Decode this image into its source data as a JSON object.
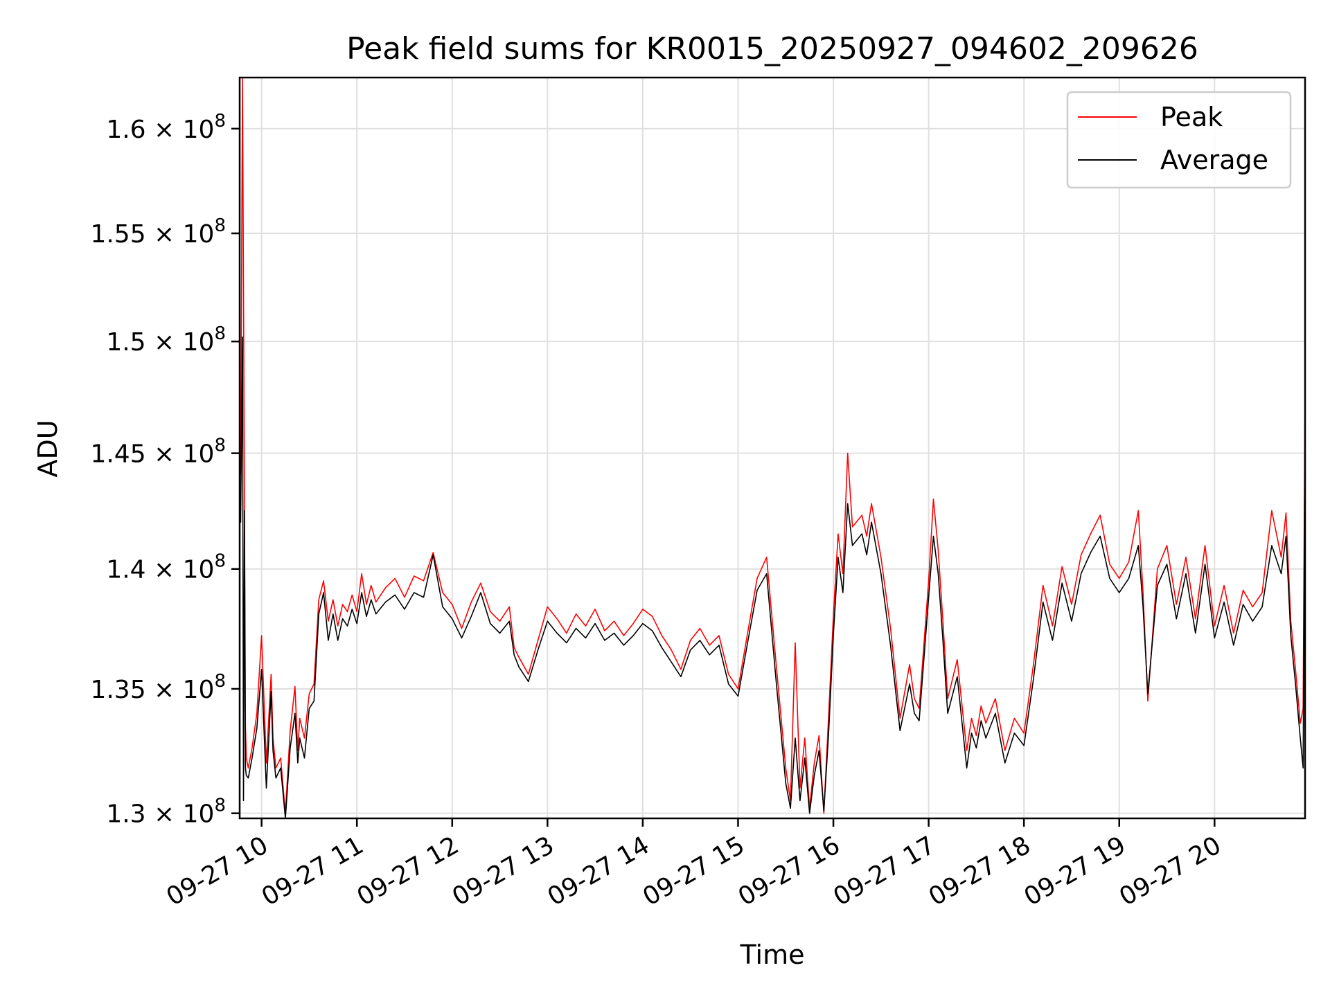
{
  "chart_data": {
    "type": "line",
    "title": "Peak field sums for KR0015_20250927_094602_209626",
    "xlabel": "Time",
    "ylabel": "ADU",
    "x_range": [
      "2025-09-27 09:46",
      "2025-09-27 20:58"
    ],
    "y_scale": "log",
    "ylim": [
      129800000.0,
      162500000.0
    ],
    "grid": true,
    "legend_position": "top-right",
    "x_ticks": [
      {
        "t": 10,
        "label": "09-27 10"
      },
      {
        "t": 11,
        "label": "09-27 11"
      },
      {
        "t": 12,
        "label": "09-27 12"
      },
      {
        "t": 13,
        "label": "09-27 13"
      },
      {
        "t": 14,
        "label": "09-27 14"
      },
      {
        "t": 15,
        "label": "09-27 15"
      },
      {
        "t": 16,
        "label": "09-27 16"
      },
      {
        "t": 17,
        "label": "09-27 17"
      },
      {
        "t": 18,
        "label": "09-27 18"
      },
      {
        "t": 19,
        "label": "09-27 19"
      },
      {
        "t": 20,
        "label": "09-27 20"
      }
    ],
    "y_ticks": [
      {
        "value": 130000000.0,
        "mant": "1.3"
      },
      {
        "value": 135000000.0,
        "mant": "1.35"
      },
      {
        "value": 140000000.0,
        "mant": "1.4"
      },
      {
        "value": 145000000.0,
        "mant": "1.45"
      },
      {
        "value": 150000000.0,
        "mant": "1.5"
      },
      {
        "value": 155000000.0,
        "mant": "1.55"
      },
      {
        "value": 160000000.0,
        "mant": "1.6"
      }
    ],
    "tick_times_suffix": "× 10",
    "tick_exponent": "8",
    "series": [
      {
        "name": "Peak",
        "color": "#ff0000",
        "x_hours": [
          9.77,
          9.78,
          9.8,
          9.82,
          9.83,
          9.84,
          9.86,
          9.9,
          9.95,
          10.0,
          10.05,
          10.1,
          10.12,
          10.15,
          10.2,
          10.25,
          10.3,
          10.35,
          10.38,
          10.4,
          10.45,
          10.5,
          10.55,
          10.6,
          10.65,
          10.7,
          10.75,
          10.8,
          10.85,
          10.9,
          10.95,
          11.0,
          11.05,
          11.1,
          11.15,
          11.2,
          11.3,
          11.4,
          11.5,
          11.6,
          11.7,
          11.8,
          11.9,
          12.0,
          12.1,
          12.2,
          12.3,
          12.4,
          12.5,
          12.6,
          12.65,
          12.7,
          12.8,
          12.9,
          13.0,
          13.1,
          13.2,
          13.3,
          13.4,
          13.5,
          13.6,
          13.7,
          13.8,
          13.9,
          14.0,
          14.1,
          14.2,
          14.3,
          14.4,
          14.5,
          14.6,
          14.7,
          14.8,
          14.9,
          15.0,
          15.1,
          15.2,
          15.3,
          15.4,
          15.5,
          15.55,
          15.6,
          15.65,
          15.7,
          15.75,
          15.8,
          15.85,
          15.9,
          15.95,
          16.0,
          16.05,
          16.1,
          16.15,
          16.2,
          16.3,
          16.35,
          16.4,
          16.5,
          16.6,
          16.7,
          16.8,
          16.85,
          16.9,
          17.0,
          17.05,
          17.1,
          17.15,
          17.2,
          17.3,
          17.4,
          17.45,
          17.5,
          17.55,
          17.6,
          17.7,
          17.8,
          17.9,
          18.0,
          18.1,
          18.2,
          18.3,
          18.4,
          18.5,
          18.6,
          18.7,
          18.8,
          18.9,
          19.0,
          19.1,
          19.2,
          19.25,
          19.3,
          19.4,
          19.5,
          19.6,
          19.7,
          19.8,
          19.9,
          20.0,
          20.1,
          20.2,
          20.3,
          20.4,
          20.5,
          20.6,
          20.7,
          20.75,
          20.8,
          20.85,
          20.9,
          20.93,
          20.95
        ],
        "values": [
          147500000.0,
          144100000.0,
          162500000.0,
          142800000.0,
          133500000.0,
          132200000.0,
          131800000.0,
          132600000.0,
          134000000.0,
          137200000.0,
          132000000.0,
          135600000.0,
          133000000.0,
          131800000.0,
          132200000.0,
          130000000.0,
          133300000.0,
          135100000.0,
          132500000.0,
          133800000.0,
          133000000.0,
          134800000.0,
          135200000.0,
          138700000.0,
          139500000.0,
          137800000.0,
          138700000.0,
          137600000.0,
          138500000.0,
          138200000.0,
          138900000.0,
          138200000.0,
          139800000.0,
          138500000.0,
          139300000.0,
          138600000.0,
          139200000.0,
          139600000.0,
          138800000.0,
          139700000.0,
          139500000.0,
          140700000.0,
          139000000.0,
          138500000.0,
          137500000.0,
          138600000.0,
          139400000.0,
          138200000.0,
          137800000.0,
          138400000.0,
          136700000.0,
          136300000.0,
          135600000.0,
          137000000.0,
          138400000.0,
          137900000.0,
          137300000.0,
          138100000.0,
          137600000.0,
          138300000.0,
          137400000.0,
          137800000.0,
          137200000.0,
          137700000.0,
          138300000.0,
          138000000.0,
          137200000.0,
          136600000.0,
          135800000.0,
          137000000.0,
          137500000.0,
          136800000.0,
          137200000.0,
          135600000.0,
          135000000.0,
          137300000.0,
          139600000.0,
          140500000.0,
          136000000.0,
          131800000.0,
          130500000.0,
          136900000.0,
          131000000.0,
          133000000.0,
          130200000.0,
          132000000.0,
          133100000.0,
          130000000.0,
          133900000.0,
          138000000.0,
          141500000.0,
          139800000.0,
          145000000.0,
          141800000.0,
          142300000.0,
          141400000.0,
          142800000.0,
          140500000.0,
          137500000.0,
          133800000.0,
          136000000.0,
          134600000.0,
          134200000.0,
          139500000.0,
          143000000.0,
          140800000.0,
          137800000.0,
          134600000.0,
          136200000.0,
          132500000.0,
          133800000.0,
          133100000.0,
          134300000.0,
          133600000.0,
          134600000.0,
          132500000.0,
          133800000.0,
          133200000.0,
          136000000.0,
          139300000.0,
          137600000.0,
          140100000.0,
          138500000.0,
          140600000.0,
          141500000.0,
          142300000.0,
          140200000.0,
          139600000.0,
          140300000.0,
          142500000.0,
          139000000.0,
          134500000.0,
          140000000.0,
          141000000.0,
          138500000.0,
          140500000.0,
          137900000.0,
          141000000.0,
          137600000.0,
          139300000.0,
          137300000.0,
          139100000.0,
          138400000.0,
          139000000.0,
          142500000.0,
          140500000.0,
          142400000.0,
          137800000.0,
          135800000.0,
          133600000.0,
          134200000.0,
          147700000.0
        ]
      },
      {
        "name": "Average",
        "color": "#000000",
        "x_hours": [
          9.77,
          9.78,
          9.8,
          9.81,
          9.82,
          9.83,
          9.84,
          9.86,
          9.9,
          9.95,
          10.0,
          10.05,
          10.1,
          10.12,
          10.15,
          10.2,
          10.25,
          10.3,
          10.35,
          10.38,
          10.4,
          10.45,
          10.5,
          10.55,
          10.6,
          10.65,
          10.7,
          10.75,
          10.8,
          10.85,
          10.9,
          10.95,
          11.0,
          11.05,
          11.1,
          11.15,
          11.2,
          11.3,
          11.4,
          11.5,
          11.6,
          11.7,
          11.8,
          11.9,
          12.0,
          12.1,
          12.2,
          12.3,
          12.4,
          12.5,
          12.6,
          12.65,
          12.7,
          12.8,
          12.9,
          13.0,
          13.1,
          13.2,
          13.3,
          13.4,
          13.5,
          13.6,
          13.7,
          13.8,
          13.9,
          14.0,
          14.1,
          14.2,
          14.3,
          14.4,
          14.5,
          14.6,
          14.7,
          14.8,
          14.9,
          15.0,
          15.1,
          15.2,
          15.3,
          15.4,
          15.5,
          15.55,
          15.6,
          15.65,
          15.7,
          15.75,
          15.8,
          15.85,
          15.9,
          15.95,
          16.0,
          16.05,
          16.1,
          16.15,
          16.2,
          16.3,
          16.35,
          16.4,
          16.5,
          16.6,
          16.7,
          16.8,
          16.85,
          16.9,
          17.0,
          17.05,
          17.1,
          17.15,
          17.2,
          17.3,
          17.4,
          17.45,
          17.5,
          17.55,
          17.6,
          17.7,
          17.8,
          17.9,
          18.0,
          18.1,
          18.2,
          18.3,
          18.4,
          18.5,
          18.6,
          18.7,
          18.8,
          18.9,
          19.0,
          19.1,
          19.2,
          19.25,
          19.3,
          19.4,
          19.5,
          19.6,
          19.7,
          19.8,
          19.9,
          20.0,
          20.1,
          20.2,
          20.3,
          20.4,
          20.5,
          20.6,
          20.7,
          20.75,
          20.8,
          20.85,
          20.9,
          20.93,
          20.95
        ],
        "values": [
          142800000.0,
          142000000.0,
          150200000.0,
          130500000.0,
          142500000.0,
          131800000.0,
          131500000.0,
          131400000.0,
          132200000.0,
          133400000.0,
          135800000.0,
          131000000.0,
          134900000.0,
          132500000.0,
          131400000.0,
          131800000.0,
          129800000.0,
          132600000.0,
          134000000.0,
          132000000.0,
          133000000.0,
          132200000.0,
          134200000.0,
          134500000.0,
          138100000.0,
          139000000.0,
          137000000.0,
          138100000.0,
          137000000.0,
          137900000.0,
          137600000.0,
          138300000.0,
          137700000.0,
          139000000.0,
          138000000.0,
          138700000.0,
          138100000.0,
          138600000.0,
          138900000.0,
          138300000.0,
          139000000.0,
          138800000.0,
          140600000.0,
          138400000.0,
          137900000.0,
          137100000.0,
          138000000.0,
          139000000.0,
          137700000.0,
          137300000.0,
          137800000.0,
          136400000.0,
          135900000.0,
          135300000.0,
          136600000.0,
          137800000.0,
          137300000.0,
          136900000.0,
          137500000.0,
          137100000.0,
          137700000.0,
          137000000.0,
          137300000.0,
          136800000.0,
          137200000.0,
          137700000.0,
          137400000.0,
          136700000.0,
          136100000.0,
          135500000.0,
          136600000.0,
          137000000.0,
          136400000.0,
          136800000.0,
          135200000.0,
          134700000.0,
          136900000.0,
          139100000.0,
          139800000.0,
          135300000.0,
          131200000.0,
          130200000.0,
          133000000.0,
          130500000.0,
          132200000.0,
          130000000.0,
          131500000.0,
          132500000.0,
          130100000.0,
          133200000.0,
          137200000.0,
          140500000.0,
          139000000.0,
          142800000.0,
          141000000.0,
          141500000.0,
          140600000.0,
          142000000.0,
          139800000.0,
          136800000.0,
          133300000.0,
          135200000.0,
          134000000.0,
          133700000.0,
          138800000.0,
          141400000.0,
          139800000.0,
          137000000.0,
          134000000.0,
          135500000.0,
          131800000.0,
          133200000.0,
          132600000.0,
          133700000.0,
          133000000.0,
          134000000.0,
          132000000.0,
          133200000.0,
          132700000.0,
          135400000.0,
          138600000.0,
          137000000.0,
          139400000.0,
          137800000.0,
          139800000.0,
          140700000.0,
          141400000.0,
          139600000.0,
          139000000.0,
          139600000.0,
          141000000.0,
          138400000.0,
          134800000.0,
          139300000.0,
          140200000.0,
          137900000.0,
          139800000.0,
          137300000.0,
          140200000.0,
          137100000.0,
          138600000.0,
          136800000.0,
          138500000.0,
          137800000.0,
          138400000.0,
          141000000.0,
          139800000.0,
          141400000.0,
          137200000.0,
          135200000.0,
          133000000.0,
          131800000.0,
          147000000.0
        ]
      }
    ]
  }
}
